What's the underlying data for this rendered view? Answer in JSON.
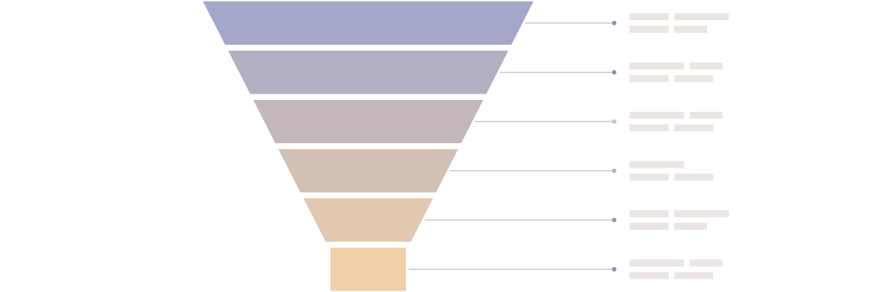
{
  "diagram": {
    "type": "funnel",
    "stages": [
      {
        "color": "#a4a7c9",
        "dot_color": "#8e8fb3",
        "line_color": "#b8b7c8",
        "placeholder_rows": [
          [
            2,
            3
          ],
          [
            2,
            1
          ]
        ]
      },
      {
        "color": "#b3aec2",
        "dot_color": "#8e8fb3",
        "line_color": "#b8b7c8",
        "placeholder_rows": [
          [
            3,
            1
          ],
          [
            2,
            2
          ]
        ]
      },
      {
        "color": "#c4b7bc",
        "dot_color": "#d9bfae",
        "line_color": "#b8b7c8",
        "placeholder_rows": [
          [
            3,
            1
          ],
          [
            2,
            2
          ]
        ]
      },
      {
        "color": "#d3c0b4",
        "dot_color": "#c4acb3",
        "line_color": "#b8b7c8",
        "placeholder_rows": [
          [
            3
          ],
          [
            2,
            2
          ]
        ]
      },
      {
        "color": "#e2c8ae",
        "dot_color": "#9c93ad",
        "line_color": "#b8b7c8",
        "placeholder_rows": [
          [
            2,
            3
          ],
          [
            2,
            1
          ]
        ]
      },
      {
        "color": "#f1d0a9",
        "dot_color": "#8e8fb3",
        "line_color": "#b8b7c8",
        "placeholder_rows": [
          [
            3,
            1
          ],
          [
            2,
            2
          ]
        ]
      }
    ],
    "placeholder_color": "#ebe6e3"
  }
}
